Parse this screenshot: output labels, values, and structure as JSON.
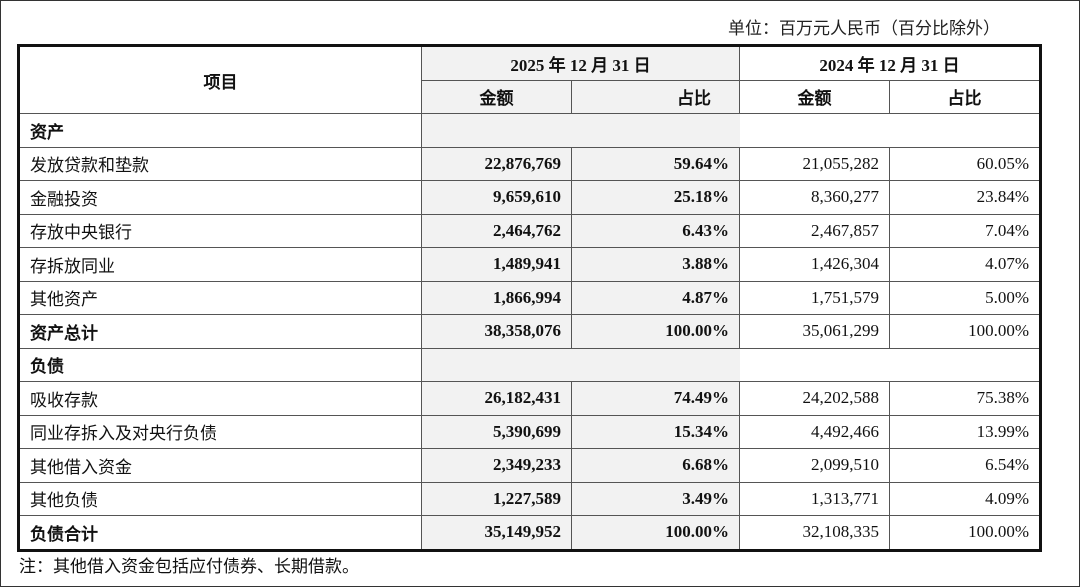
{
  "unit": "单位：百万元人民币（百分比除外）",
  "header": {
    "item": "项目",
    "period_2025": "2025 年 12 月 31 日",
    "period_2024": "2024 年 12 月 31 日",
    "amount": "金额",
    "ratio": "占比"
  },
  "rows": [
    {
      "type": "section",
      "label": "资产"
    },
    {
      "label": "发放贷款和垫款",
      "a25": "22,876,769",
      "r25": "59.64%",
      "a24": "21,055,282",
      "r24": "60.05%"
    },
    {
      "label": "金融投资",
      "a25": "9,659,610",
      "r25": "25.18%",
      "a24": "8,360,277",
      "r24": "23.84%"
    },
    {
      "label": "存放中央银行",
      "a25": "2,464,762",
      "r25": "6.43%",
      "a24": "2,467,857",
      "r24": "7.04%"
    },
    {
      "label": "存拆放同业",
      "a25": "1,489,941",
      "r25": "3.88%",
      "a24": "1,426,304",
      "r24": "4.07%"
    },
    {
      "label": "其他资产",
      "a25": "1,866,994",
      "r25": "4.87%",
      "a24": "1,751,579",
      "r24": "5.00%"
    },
    {
      "type": "total",
      "label": "资产总计",
      "a25": "38,358,076",
      "r25": "100.00%",
      "a24": "35,061,299",
      "r24": "100.00%"
    },
    {
      "type": "section",
      "label": "负债"
    },
    {
      "label": "吸收存款",
      "a25": "26,182,431",
      "r25": "74.49%",
      "a24": "24,202,588",
      "r24": "75.38%"
    },
    {
      "label": "同业存拆入及对央行负债",
      "a25": "5,390,699",
      "r25": "15.34%",
      "a24": "4,492,466",
      "r24": "13.99%"
    },
    {
      "label": "其他借入资金",
      "a25": "2,349,233",
      "r25": "6.68%",
      "a24": "2,099,510",
      "r24": "6.54%"
    },
    {
      "label": "其他负债",
      "a25": "1,227,589",
      "r25": "3.49%",
      "a24": "1,313,771",
      "r24": "4.09%"
    },
    {
      "type": "total",
      "label": "负债合计",
      "a25": "35,149,952",
      "r25": "100.00%",
      "a24": "32,108,335",
      "r24": "100.00%"
    }
  ],
  "note": "注：其他借入资金包括应付债券、长期借款。"
}
